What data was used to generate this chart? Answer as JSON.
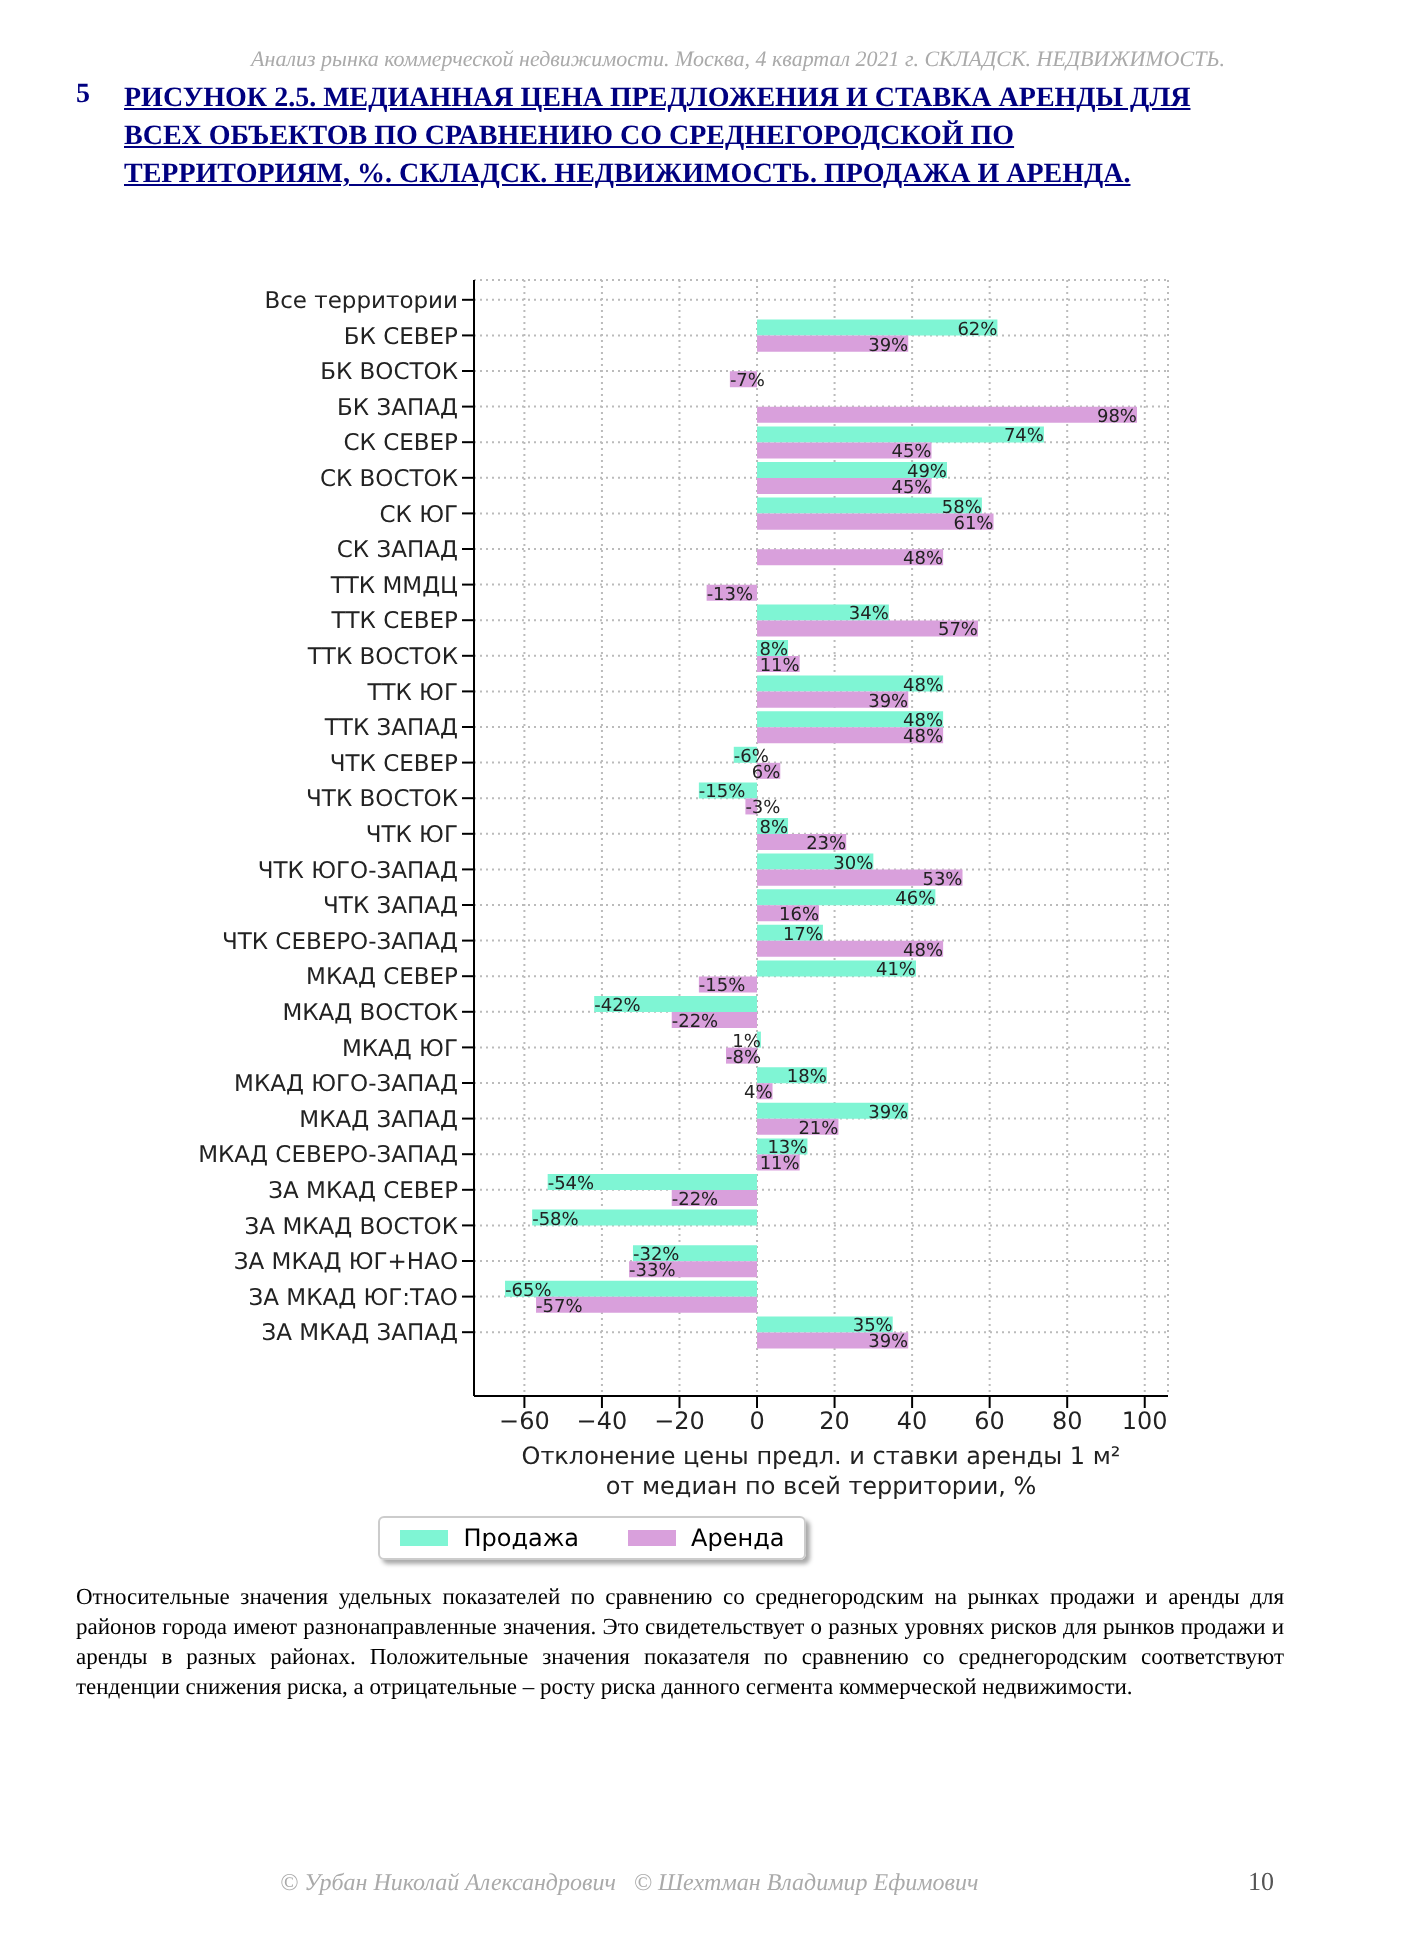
{
  "chart_data": {
    "type": "bar",
    "orientation": "horizontal",
    "title": "РИСУНОК 2.5. МЕДИАННАЯ ЦЕНА ПРЕДЛОЖЕНИЯ И СТАВКА АРЕНДЫ ДЛЯ ВСЕХ ОБЪЕКТОВ ПО СРАВНЕНИЮ СО СРЕДНЕГОРОДСКОЙ ПО ТЕРРИТОРИЯМ, %. СКЛАДСК. НЕДВИЖИМОСТЬ. ПРОДАЖА И АРЕНДА.",
    "xlabel": "Отклонение цены предл. и ставки аренды 1 м²\nот медиан по всей территории, %",
    "categories": [
      "Все территории",
      "БК СЕВЕР",
      "БК ВОСТОК",
      "БК ЗАПАД",
      "СК СЕВЕР",
      "СК ВОСТОК",
      "СК ЮГ",
      "СК ЗАПАД",
      "ТТК ММДЦ",
      "ТТК СЕВЕР",
      "ТТК ВОСТОК",
      "ТТК ЮГ",
      "ТТК ЗАПАД",
      "ЧТК СЕВЕР",
      "ЧТК ВОСТОК",
      "ЧТК ЮГ",
      "ЧТК ЮГО-ЗАПАД",
      "ЧТК ЗАПАД",
      "ЧТК СЕВЕРО-ЗАПАД",
      "МКАД СЕВЕР",
      "МКАД ВОСТОК",
      "МКАД ЮГ",
      "МКАД ЮГО-ЗАПАД",
      "МКАД ЗАПАД",
      "МКАД СЕВЕРО-ЗАПАД",
      "ЗА МКАД СЕВЕР",
      "ЗА МКАД ВОСТОК",
      "ЗА МКАД ЮГ+НАО",
      "ЗА МКАД ЮГ:ТАО",
      "ЗА МКАД ЗАПАД"
    ],
    "series": [
      {
        "name": "Продажа",
        "color": "#7ff5d4",
        "values": [
          null,
          62,
          null,
          null,
          74,
          49,
          58,
          null,
          null,
          34,
          8,
          48,
          48,
          -6,
          -15,
          8,
          30,
          46,
          17,
          41,
          -42,
          1,
          18,
          39,
          13,
          -54,
          -58,
          -32,
          -65,
          35
        ],
        "value_labels": [
          null,
          "62%",
          null,
          null,
          "74%",
          "49%",
          "58%",
          null,
          null,
          "34%",
          "8%",
          "48%",
          "48%",
          "-6%",
          "-15%",
          "8%",
          "30%",
          "46%",
          "17%",
          "41%",
          "-42%",
          "1%",
          "18%",
          "39%",
          "13%",
          "-54%",
          "-58%",
          "-32%",
          "-65%",
          "35%"
        ]
      },
      {
        "name": "Аренда",
        "color": "#d9a0dc",
        "values": [
          null,
          39,
          -7,
          98,
          45,
          45,
          61,
          48,
          -13,
          57,
          11,
          39,
          48,
          6,
          -3,
          23,
          53,
          16,
          48,
          -15,
          -22,
          -8,
          4,
          21,
          11,
          -22,
          null,
          -33,
          -57,
          39
        ],
        "value_labels": [
          null,
          "39%",
          "-7%",
          "98%",
          "45%",
          "45%",
          "61%",
          "48%",
          "-13%",
          "57%",
          "11%",
          "39%",
          "48%",
          "6%",
          "-3%",
          "23%",
          "53%",
          "16%",
          "48%",
          "-15%",
          "-22%",
          "-8%",
          "4%",
          "21%",
          "11%",
          "-22%",
          null,
          "-33%",
          "-57%",
          "39%"
        ]
      }
    ],
    "xlim": [
      -73,
      106
    ],
    "xticks": [
      -60,
      -40,
      -20,
      0,
      20,
      40,
      60,
      80,
      100
    ],
    "grid": true,
    "legend": "bottom",
    "annotations": [
      "Анализ рынка коммерческой недвижимости.   Москва,  4 квартал 2021 г.   СКЛАДСК. НЕДВИЖИМОСТЬ.",
      "5",
      "Относительные значения удельных показателей по сравнению со среднегородским на рынках продажи и аренды для районов города имеют разнонаправленные значения. Это свидетельствует о разных уровнях рисков для рынков продажи и аренды в разных районах. Положительные значения показателя по сравнению со среднегородским соответствуют тенденции снижения риска, а отрицательные – росту риска данного сегмента коммерческой недвижимости.",
      "© Урбан Николай Александрович   © Шехтман Владимир Ефимович",
      "10"
    ]
  }
}
